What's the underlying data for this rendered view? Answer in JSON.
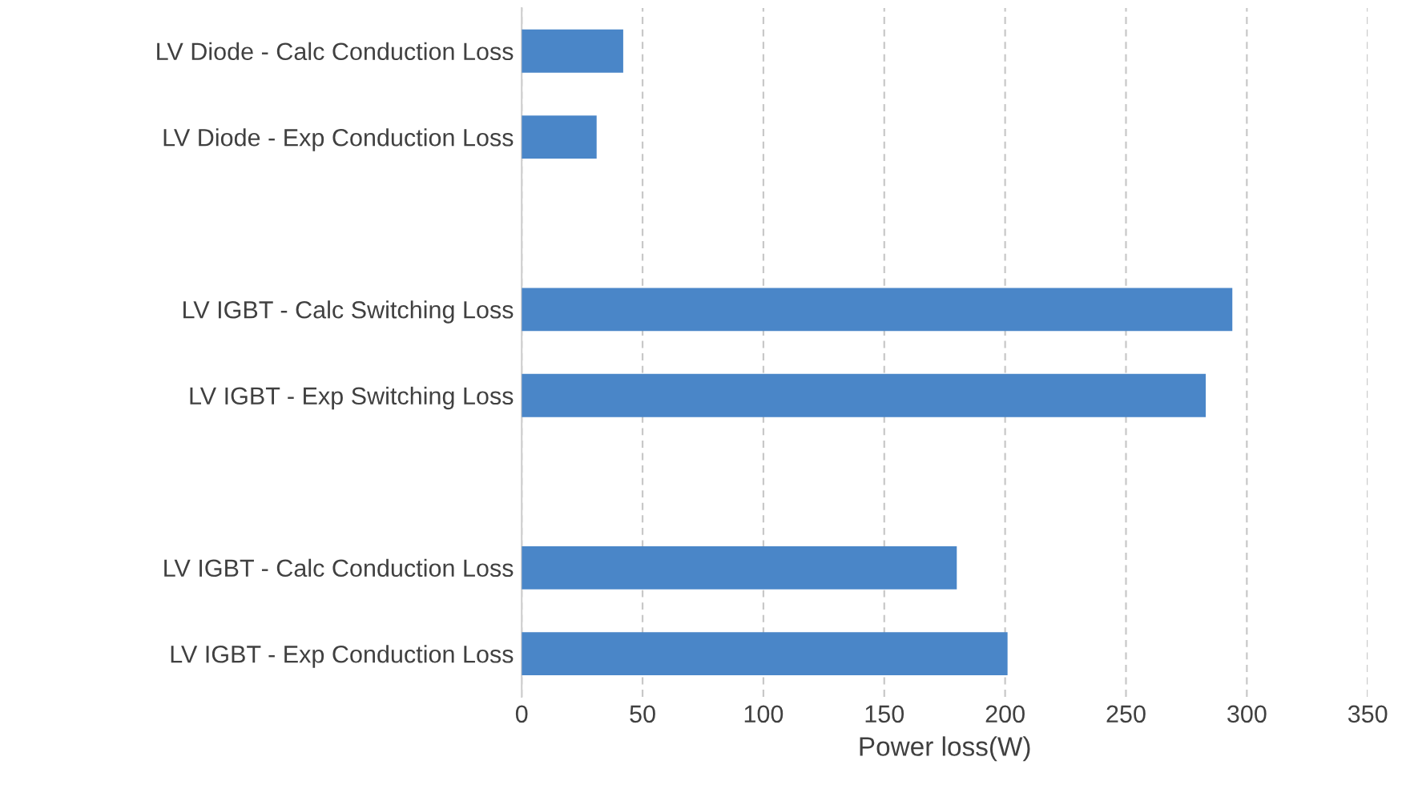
{
  "chart_data": {
    "type": "bar",
    "orientation": "horizontal",
    "xlabel": "Power loss(W)",
    "categories": [
      "LV Diode - Calc Conduction Loss",
      "LV Diode - Exp Conduction Loss",
      null,
      "LV IGBT - Calc Switching Loss",
      "LV IGBT - Exp Switching Loss",
      null,
      "LV IGBT - Calc Conduction Loss",
      "LV IGBT - Exp Conduction Loss"
    ],
    "values": [
      42,
      31,
      null,
      294,
      283,
      null,
      180,
      201
    ],
    "color": "#4a86c8",
    "xlim": [
      0,
      350
    ],
    "xticks": [
      0,
      50,
      100,
      150,
      200,
      250,
      300,
      350
    ],
    "grid": "x"
  }
}
